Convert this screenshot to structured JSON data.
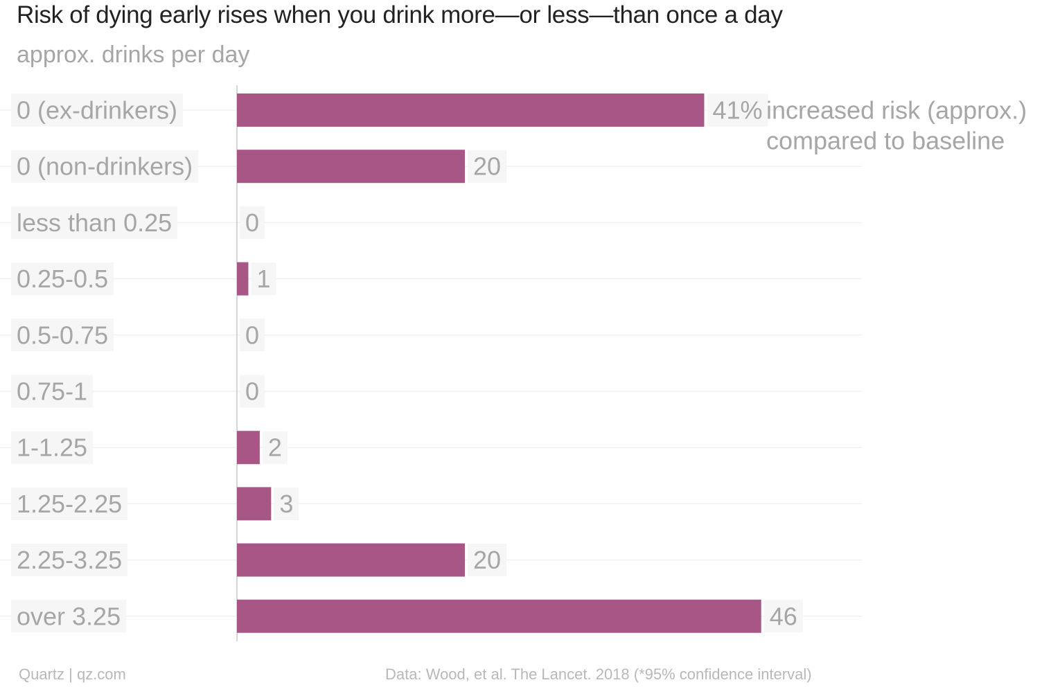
{
  "title": "Risk of dying early rises when you drink more—or less—than once a day",
  "subtitle": "approx. drinks per day",
  "footer": {
    "credit": "Quartz | qz.com",
    "source": "Data: Wood, et al. The Lancet. 2018 (*95% confidence interval)"
  },
  "colors": {
    "bar": "#a85685",
    "label": "#a6a6a6",
    "gridline": "#ebebeb",
    "axis": "#c8c8c8",
    "label_bg": "#f6f6f6"
  },
  "chart_data": {
    "type": "bar",
    "orientation": "horizontal",
    "title": "Risk of dying early rises when you drink more—or less—than once a day",
    "subtitle": "approx. drinks per day",
    "categories": [
      "0 (ex-drinkers)",
      "0 (non-drinkers)",
      "less than 0.25",
      "0.25-0.5",
      "0.5-0.75",
      "0.75-1",
      "1-1.25",
      "1.25-2.25",
      "2.25-3.25",
      "over 3.25"
    ],
    "values": [
      41,
      20,
      0,
      1,
      0,
      0,
      2,
      3,
      20,
      46
    ],
    "value_labels": [
      "41%",
      "20",
      "0",
      "1",
      "0",
      "0",
      "2",
      "3",
      "20",
      "46"
    ],
    "annotation": [
      "increased risk (approx.)",
      "compared to baseline"
    ],
    "xlim": [
      0,
      55
    ],
    "grid": true
  }
}
